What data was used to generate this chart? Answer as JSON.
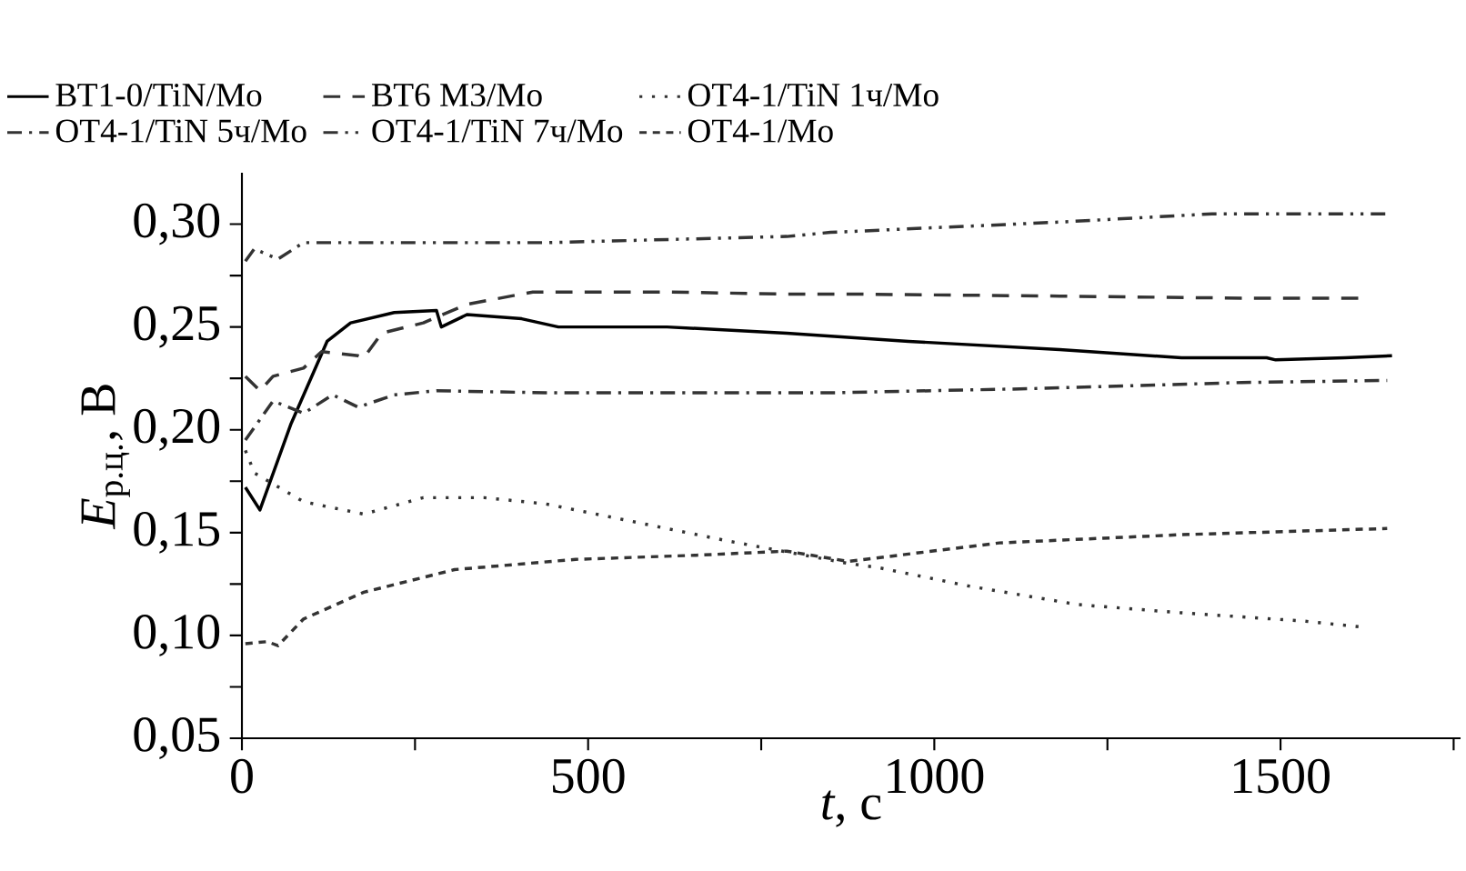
{
  "chart_data": {
    "type": "line",
    "xlabel": "*t*, с",
    "ylabel": "*E*$_{р.ц.}$, В",
    "xlim": [
      0,
      1760
    ],
    "ylim": [
      0.05,
      0.325
    ],
    "xticks": [
      0,
      {
        "value": 250,
        "label": null
      },
      500,
      {
        "value": 750,
        "label": null
      },
      1000,
      {
        "value": 1250,
        "label": null
      },
      1500,
      {
        "value": 1750,
        "label": null
      }
    ],
    "yticks": [
      {
        "value": 0.05,
        "label": "0,05"
      },
      {
        "value": 0.075,
        "label": null
      },
      {
        "value": 0.1,
        "label": "0,10"
      },
      {
        "value": 0.125,
        "label": null
      },
      {
        "value": 0.15,
        "label": "0,15"
      },
      {
        "value": 0.175,
        "label": null
      },
      {
        "value": 0.2,
        "label": "0,20"
      },
      {
        "value": 0.225,
        "label": null
      },
      {
        "value": 0.25,
        "label": "0,25"
      },
      {
        "value": 0.275,
        "label": null
      },
      {
        "value": 0.3,
        "label": "0,30"
      }
    ],
    "legend": "top",
    "grid": false,
    "marker": "none",
    "series": [
      {
        "name": "ВТ1-0/TiN/Mo",
        "color": "#000000",
        "line_style": "solid",
        "x": [
          5,
          26,
          71,
          123,
          157,
          220,
          281,
          288,
          325,
          404,
          457,
          614,
          787,
          963,
          1181,
          1357,
          1480,
          1493,
          1593,
          1661
        ],
        "values": [
          0.172,
          0.161,
          0.203,
          0.243,
          0.252,
          0.257,
          0.258,
          0.25,
          0.256,
          0.254,
          0.25,
          0.25,
          0.247,
          0.243,
          0.239,
          0.235,
          0.235,
          0.234,
          0.235,
          0.236
        ]
      },
      {
        "name": "ВТ6 М3/Mo",
        "color": "#333333",
        "line_style": "dashed",
        "x": [
          5,
          26,
          45,
          89,
          115,
          168,
          176,
          202,
          262,
          325,
          420,
          614,
          787,
          876,
          1181,
          1444,
          1620
        ],
        "values": [
          0.226,
          0.219,
          0.226,
          0.23,
          0.238,
          0.236,
          0.235,
          0.247,
          0.252,
          0.261,
          0.267,
          0.267,
          0.266,
          0.266,
          0.265,
          0.264,
          0.264
        ]
      },
      {
        "name": "ОТ4-1/TiN 1ч/Mo",
        "color": "#333333",
        "line_style": "dotted",
        "x": [
          5,
          18,
          89,
          176,
          262,
          350,
          438,
          570,
          701,
          876,
          919,
          1050,
          1207,
          1357,
          1533,
          1620
        ],
        "values": [
          0.19,
          0.179,
          0.165,
          0.159,
          0.167,
          0.167,
          0.164,
          0.155,
          0.146,
          0.135,
          0.133,
          0.124,
          0.115,
          0.111,
          0.107,
          0.104
        ]
      },
      {
        "name": "ОТ4-1/TiN 5ч/Mo",
        "color": "#333333",
        "line_style": "dashdot",
        "x": [
          5,
          45,
          89,
          131,
          168,
          220,
          281,
          438,
          787,
          850,
          1139,
          1444,
          1654
        ],
        "values": [
          0.195,
          0.214,
          0.208,
          0.217,
          0.211,
          0.217,
          0.219,
          0.218,
          0.218,
          0.218,
          0.22,
          0.223,
          0.224
        ]
      },
      {
        "name": "ОТ4-1/TiN 7ч/Mo",
        "color": "#333333",
        "line_style": "dashdotdot",
        "x": [
          5,
          18,
          52,
          89,
          262,
          438,
          787,
          850,
          1181,
          1401,
          1654
        ],
        "values": [
          0.282,
          0.288,
          0.283,
          0.291,
          0.291,
          0.291,
          0.294,
          0.296,
          0.301,
          0.305,
          0.305
        ]
      },
      {
        "name": "ОТ4-1/Mo",
        "color": "#333333",
        "line_style": "shortdash",
        "x": [
          5,
          37,
          52,
          89,
          176,
          307,
          482,
          656,
          787,
          876,
          1094,
          1357,
          1654
        ],
        "values": [
          0.096,
          0.097,
          0.095,
          0.108,
          0.121,
          0.132,
          0.137,
          0.139,
          0.141,
          0.136,
          0.145,
          0.149,
          0.152
        ]
      }
    ]
  }
}
